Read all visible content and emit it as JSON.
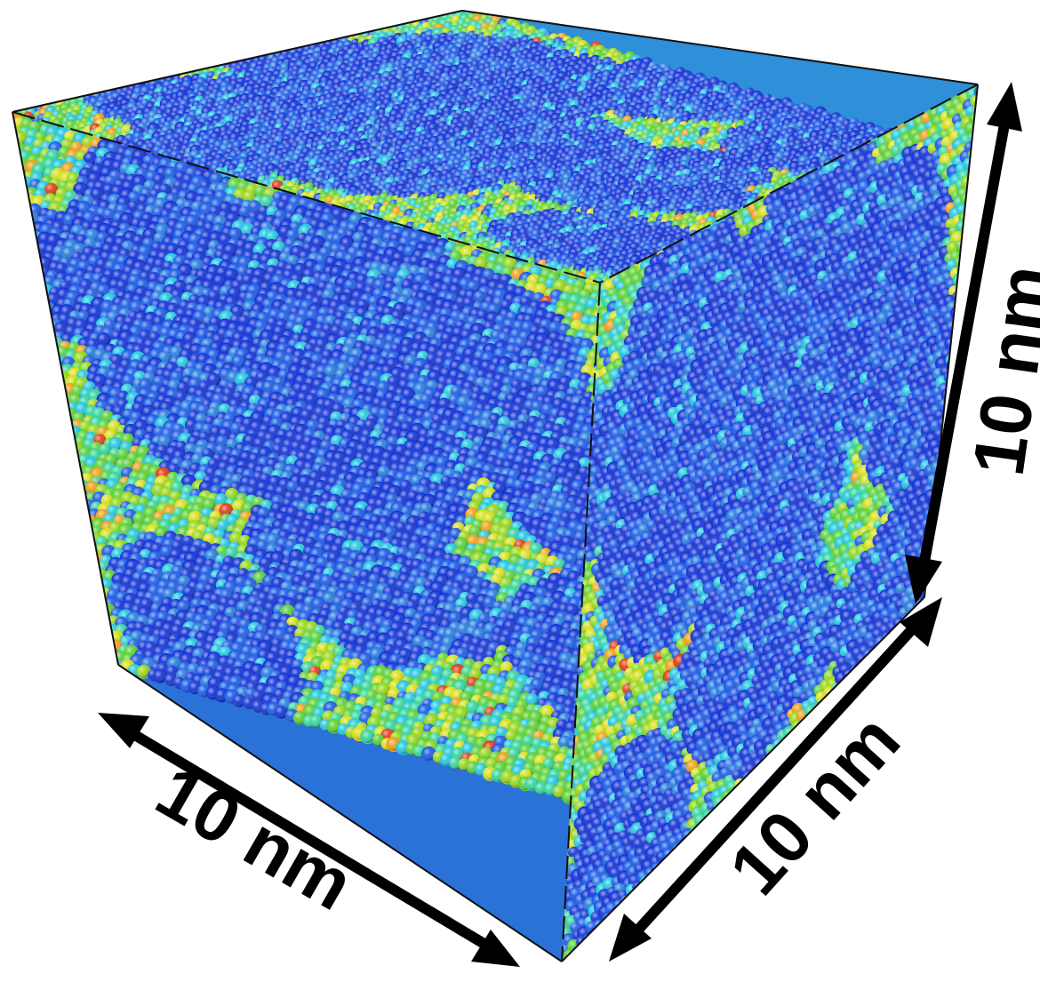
{
  "figure": {
    "dimension_labels": {
      "front_left_edge": "10 nm",
      "front_right_edge": "10 nm",
      "vertical_edge": "10 nm"
    }
  },
  "colors": {
    "background": "#ffffff",
    "arrow": "#000000",
    "box_outline": "#111111",
    "atom_palette": [
      "#1535d6",
      "#1f5ee6",
      "#2a7fe0",
      "#27c8e0",
      "#38d6a0",
      "#5fd23a",
      "#9ad81f",
      "#d8e022",
      "#f0a21c",
      "#e2401a"
    ]
  },
  "icons": {
    "atoms": "sphere-atom-icon",
    "arrows": "double-headed-arrow-icon"
  }
}
